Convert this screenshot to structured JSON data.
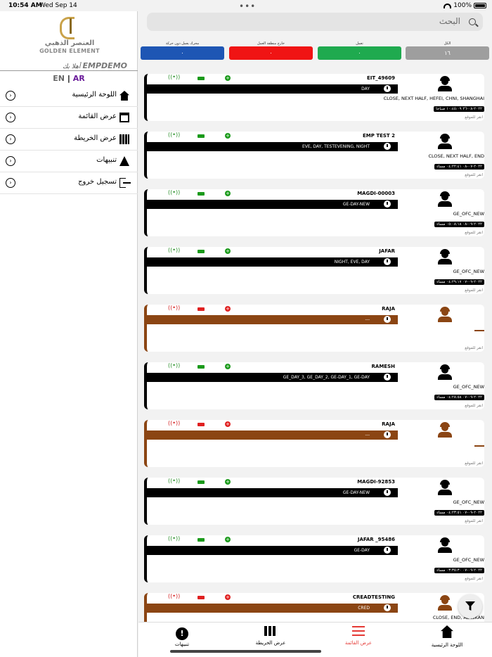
{
  "status_bar": {
    "time": "10:54 AM",
    "date": "Wed Sep 14",
    "battery": "100%"
  },
  "sidebar": {
    "logo_ar": "العنصر الذهبي",
    "logo_en": "GOLDEN ELEMENT",
    "user": "EMPDEMO",
    "welcome": "أهلا بك",
    "lang_en": "EN",
    "lang_sep": "|",
    "lang_ar": "AR",
    "items": [
      {
        "label": "اللوحة الرئيسية",
        "icon": "home-icon"
      },
      {
        "label": "عرض القائمة",
        "icon": "list-icon"
      },
      {
        "label": "عرض الخريطة",
        "icon": "map-icon"
      },
      {
        "label": "تنبيهات",
        "icon": "warning-icon"
      },
      {
        "label": "تسجيل خروج",
        "icon": "logout-icon"
      }
    ]
  },
  "search": {
    "placeholder": "البحث"
  },
  "filters": [
    {
      "title": "الكل",
      "count": "١٦",
      "color": "#9e9e9e"
    },
    {
      "title": "تعمل",
      "count": "٠",
      "color": "#1faa4f"
    },
    {
      "title": "خارج منطقة العمل",
      "count": "٠",
      "color": "#f01414"
    },
    {
      "title": "محرك يعمل دون حركة",
      "count": "٠",
      "color": "#1e56b4"
    }
  ],
  "cards": [
    {
      "name": "EIT_49609",
      "shift": "DAY",
      "geo": "CLOSE, NEXT HALF, HEFEI, CHNI, SHANGHAI",
      "time": "٢٠٢٢-٠٨-٢٦ ١٠:٤٥:٠٩ صباحا",
      "loc": "انقر للموقع",
      "status": "ok"
    },
    {
      "name": "EMP TEST 2",
      "shift": "EVE, DAY, TESTEVENING, NIGHT",
      "geo": "CLOSE, NEXT HALF, END",
      "time": "٢٠٢٢-٠٧-٠٨ ٠٤:٢٢:٤١ مساء",
      "loc": "انقر للموقع",
      "status": "ok"
    },
    {
      "name": "MAGDI-00003",
      "shift": "GE-DAY-NEW",
      "geo": "GE_OFC_NEW",
      "time": "٢٠٢٢-٠٩-٠٨ ٠٥:٠٨:١٨ مساء",
      "loc": "انقر للموقع",
      "status": "ok"
    },
    {
      "name": "JAFAR",
      "shift": "NIGHT, EVE, DAY",
      "geo": "GE_OFC_NEW",
      "time": "٢٠٢٢-٠٩-٠٧ ٠٤:٢٩:١٧ مساء",
      "loc": "انقر للموقع",
      "status": "ok"
    },
    {
      "name": "RAJA",
      "shift": "---",
      "geo": "",
      "time": "",
      "loc": "انقر للموقع",
      "status": "off"
    },
    {
      "name": "RAMESH",
      "shift": "GE_DAY_3, GE_DAY_2, GE-DAY_1, GE-DAY",
      "geo": "GE_OFC_NEW",
      "time": "٢٠٢٢-٠٩-٠٧ ٠٤:٢٨:٥٨ مساء",
      "loc": "انقر للموقع",
      "status": "ok"
    },
    {
      "name": "RAJA",
      "shift": "---",
      "geo": "",
      "time": "",
      "loc": "انقر للموقع",
      "status": "off"
    },
    {
      "name": "MAGDI-92853",
      "shift": "GE-DAY-NEW",
      "geo": "GE_OFC_NEW",
      "time": "٢٠٢٢-٠٩-٠٧ ٠٤:٢٣:٥١ مساء",
      "loc": "انقر للموقع",
      "status": "ok"
    },
    {
      "name": "JAFAR _95486",
      "shift": "GE-DAY",
      "geo": "GE_OFC_NEW",
      "time": "٢٠٢٢-٠٩-٠٧ ٠٣:٣٥:٣٠ مساء",
      "loc": "انقر للموقع",
      "status": "ok"
    },
    {
      "name": "CREADTESTING",
      "shift": "CRED",
      "geo": "CLOSE, END, AL ISKAN",
      "time": "",
      "loc": "",
      "status": "off"
    }
  ],
  "tabbar": [
    {
      "label": "تنبيهات",
      "icon": "alert-icon"
    },
    {
      "label": "عرض الخريطة",
      "icon": "map-icon"
    },
    {
      "label": "عرض القائمة",
      "icon": "list-icon",
      "active": true
    },
    {
      "label": "اللوحة الرئيسية",
      "icon": "home-icon"
    }
  ]
}
